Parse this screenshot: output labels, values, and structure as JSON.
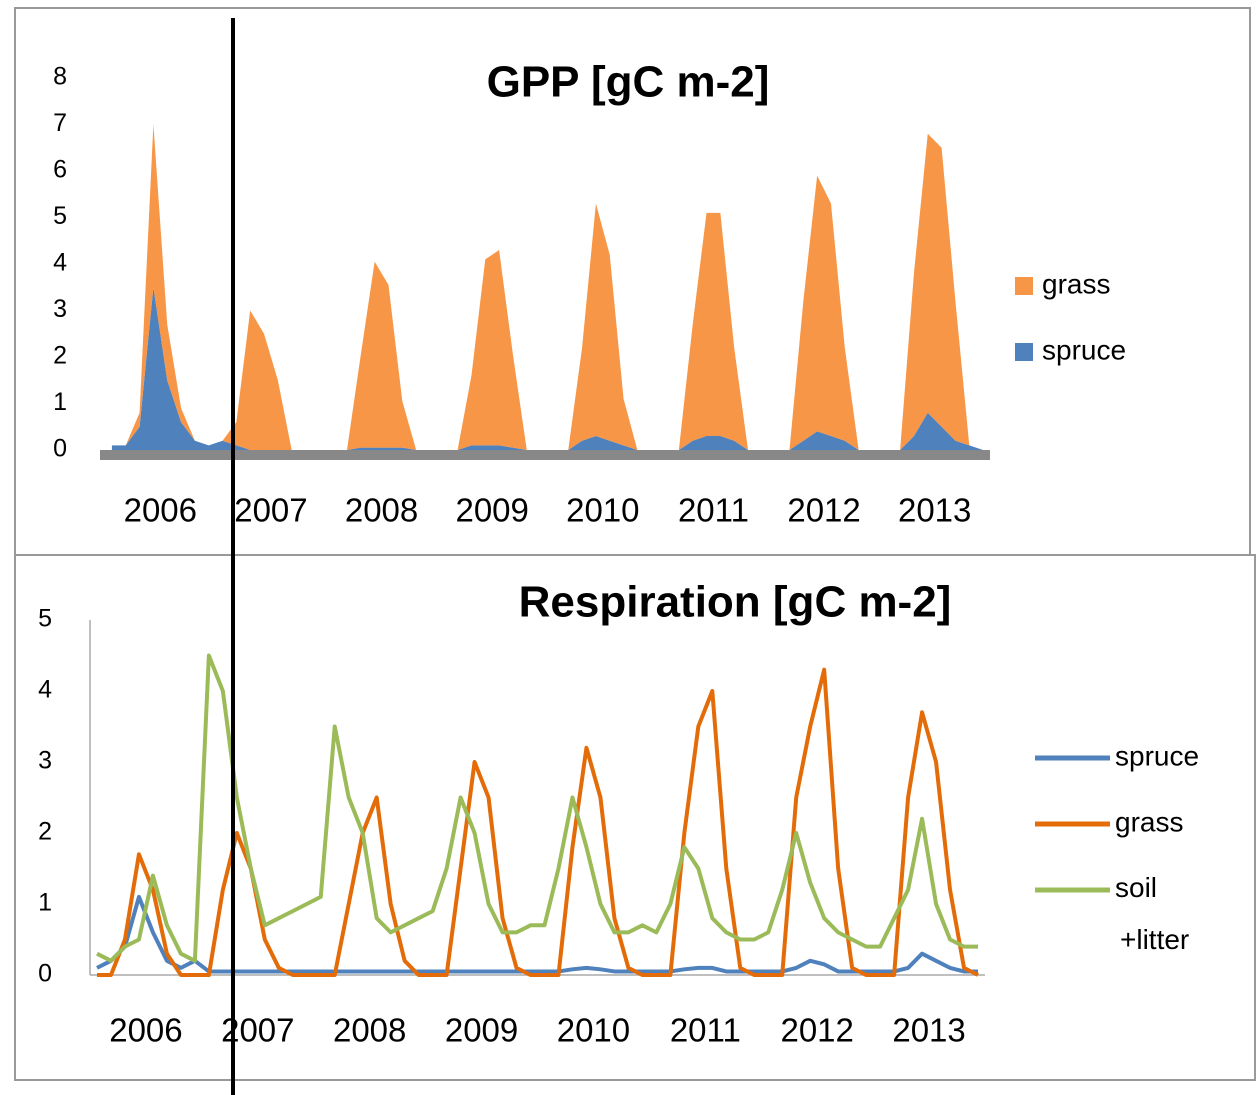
{
  "chart_data": [
    {
      "type": "area",
      "stacked": true,
      "title": "GPP [gC m-2]",
      "categories": [
        "2006",
        "2007",
        "2008",
        "2009",
        "2010",
        "2011",
        "2012",
        "2013"
      ],
      "series": [
        {
          "name": "grass",
          "color": "#f79646",
          "values": [
            [
              0,
              0,
              0.3,
              3.5,
              1.2,
              0.3,
              0,
              0
            ],
            [
              0,
              0.5,
              3.0,
              2.5,
              1.5,
              0,
              0,
              0
            ],
            [
              0,
              0,
              2.0,
              4.0,
              3.5,
              1.0,
              0,
              0
            ],
            [
              0,
              0,
              1.5,
              4.0,
              4.2,
              2.0,
              0,
              0
            ],
            [
              0,
              0,
              2.0,
              5.0,
              4.0,
              1.0,
              0,
              0
            ],
            [
              0,
              0,
              2.5,
              4.8,
              4.8,
              2.0,
              0,
              0
            ],
            [
              0,
              0,
              3.0,
              5.5,
              5.0,
              2.0,
              0,
              0
            ],
            [
              0,
              0,
              3.5,
              6.0,
              6.0,
              3.0,
              0,
              0
            ]
          ]
        },
        {
          "name": "spruce",
          "color": "#4f81bd",
          "values": [
            [
              0.1,
              0.1,
              0.5,
              3.5,
              1.5,
              0.6,
              0.2,
              0.1
            ],
            [
              0.2,
              0.1,
              0,
              0,
              0,
              0,
              0,
              0
            ],
            [
              0,
              0,
              0.05,
              0.05,
              0.05,
              0.05,
              0,
              0
            ],
            [
              0,
              0,
              0.1,
              0.1,
              0.1,
              0.05,
              0,
              0
            ],
            [
              0,
              0,
              0.2,
              0.3,
              0.2,
              0.1,
              0,
              0
            ],
            [
              0,
              0,
              0.2,
              0.3,
              0.3,
              0.2,
              0,
              0
            ],
            [
              0,
              0,
              0.2,
              0.4,
              0.3,
              0.2,
              0,
              0
            ],
            [
              0,
              0,
              0.3,
              0.8,
              0.5,
              0.2,
              0.1,
              0
            ]
          ]
        }
      ],
      "ylim": [
        0,
        8
      ],
      "yticks": [
        0,
        1,
        2,
        3,
        4,
        5,
        6,
        7,
        8
      ],
      "grid": false,
      "legend": "right"
    },
    {
      "type": "line",
      "title": "Respiration [gC m-2]",
      "categories": [
        "2006",
        "2007",
        "2008",
        "2009",
        "2010",
        "2011",
        "2012",
        "2013"
      ],
      "series": [
        {
          "name": "spruce",
          "color": "#4f81bd",
          "values": [
            [
              0.1,
              0.2,
              0.4,
              1.1,
              0.6,
              0.2,
              0.1,
              0.2
            ],
            [
              0.05,
              0.05,
              0.05,
              0.05,
              0.05,
              0.05,
              0.05,
              0.05
            ],
            [
              0.05,
              0.05,
              0.05,
              0.05,
              0.05,
              0.05,
              0.05,
              0.05
            ],
            [
              0.05,
              0.05,
              0.05,
              0.05,
              0.05,
              0.05,
              0.05,
              0.05
            ],
            [
              0.05,
              0.05,
              0.08,
              0.1,
              0.08,
              0.05,
              0.05,
              0.05
            ],
            [
              0.05,
              0.05,
              0.08,
              0.1,
              0.1,
              0.05,
              0.05,
              0.05
            ],
            [
              0.05,
              0.05,
              0.1,
              0.2,
              0.15,
              0.05,
              0.05,
              0.05
            ],
            [
              0.05,
              0.05,
              0.1,
              0.3,
              0.2,
              0.1,
              0.05,
              0.05
            ]
          ]
        },
        {
          "name": "grass",
          "color": "#e36c09",
          "values": [
            [
              0,
              0,
              0.5,
              1.7,
              1.2,
              0.3,
              0,
              0
            ],
            [
              0,
              1.2,
              2.0,
              1.5,
              0.5,
              0.1,
              0,
              0
            ],
            [
              0,
              0,
              1.0,
              2.0,
              2.5,
              1.0,
              0.2,
              0
            ],
            [
              0,
              0,
              1.5,
              3.0,
              2.5,
              0.8,
              0.1,
              0
            ],
            [
              0,
              0,
              1.8,
              3.2,
              2.5,
              0.8,
              0.1,
              0
            ],
            [
              0,
              0,
              2.0,
              3.5,
              4.0,
              1.5,
              0.1,
              0
            ],
            [
              0,
              0,
              2.5,
              3.5,
              4.3,
              1.5,
              0.1,
              0
            ],
            [
              0,
              0,
              2.5,
              3.7,
              3.0,
              1.2,
              0.1,
              0
            ]
          ]
        },
        {
          "name": "soil +litter",
          "color": "#9bbb59",
          "values": [
            [
              0.3,
              0.2,
              0.4,
              0.5,
              1.4,
              0.7,
              0.3,
              0.2
            ],
            [
              4.5,
              4.0,
              2.5,
              1.5,
              0.7,
              0.8,
              0.9,
              1.0
            ],
            [
              1.1,
              3.5,
              2.5,
              2.0,
              0.8,
              0.6,
              0.7,
              0.8
            ],
            [
              0.9,
              1.5,
              2.5,
              2.0,
              1.0,
              0.6,
              0.6,
              0.7
            ],
            [
              0.7,
              1.5,
              2.5,
              1.8,
              1.0,
              0.6,
              0.6,
              0.7
            ],
            [
              0.6,
              1.0,
              1.8,
              1.5,
              0.8,
              0.6,
              0.5,
              0.5
            ],
            [
              0.6,
              1.2,
              2.0,
              1.3,
              0.8,
              0.6,
              0.5,
              0.4
            ],
            [
              0.4,
              0.8,
              1.2,
              2.2,
              1.0,
              0.5,
              0.4,
              0.4
            ]
          ]
        }
      ],
      "ylim": [
        0,
        5
      ],
      "yticks": [
        0,
        1,
        2,
        3,
        4,
        5
      ],
      "grid": false,
      "legend": "right"
    }
  ]
}
